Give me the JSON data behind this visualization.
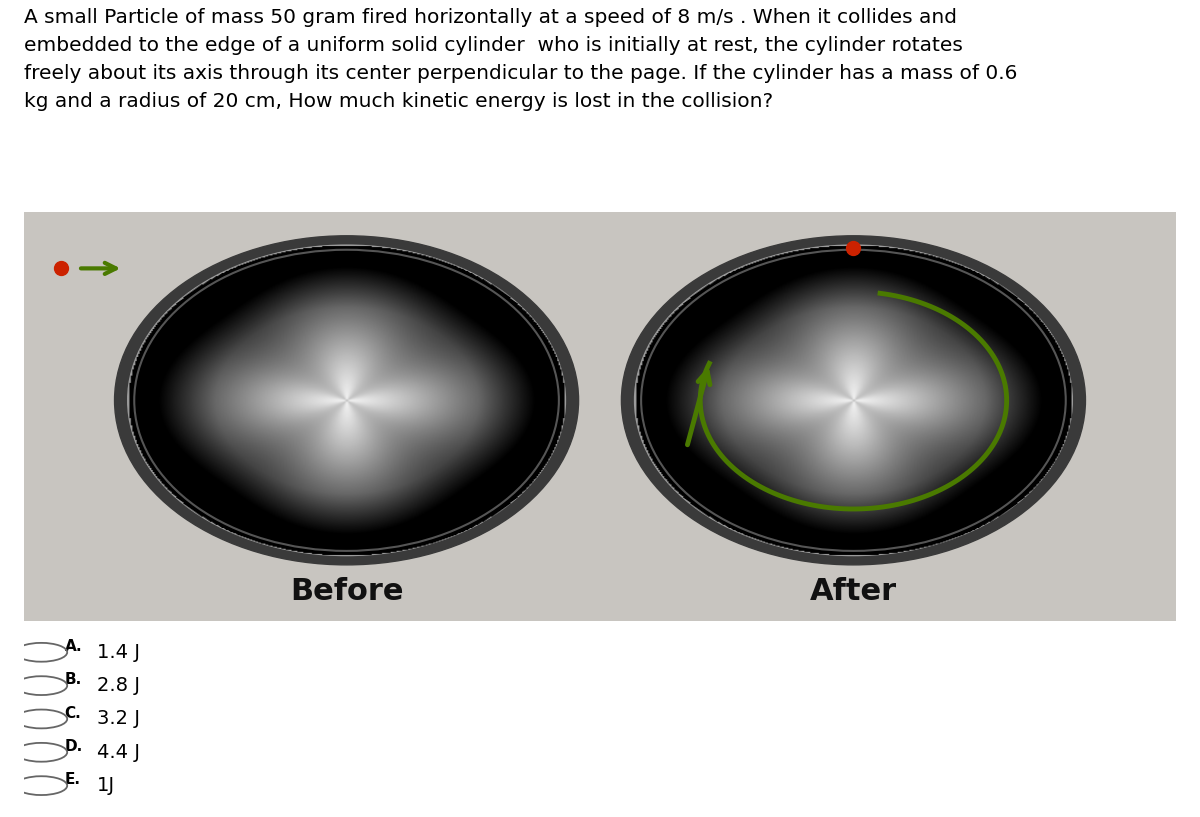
{
  "title_text": "A small Particle of mass 50 gram fired horizontally at a speed of 8 m/s . When it collides and\nembedded to the edge of a uniform solid cylinder  who is initially at rest, the cylinder rotates\nfreely about its axis through its center perpendicular to the page. If the cylinder has a mass of 0.6\nkg and a radius of 20 cm, How much kinetic energy is lost in the collision?",
  "before_label": "Before",
  "after_label": "After",
  "options": [
    "A.",
    "B.",
    "C.",
    "D.",
    "E."
  ],
  "option_values": [
    "1.4 J",
    "2.8 J",
    "3.2 J",
    "4.4 J",
    "1J"
  ],
  "bg_color": "#ffffff",
  "image_bg": "#c8c5c0",
  "particle_color": "#cc2200",
  "arrow_color": "#4a7a00",
  "text_color": "#000000",
  "title_fontsize": 14.5,
  "label_fontsize": 22,
  "option_fontsize": 14
}
